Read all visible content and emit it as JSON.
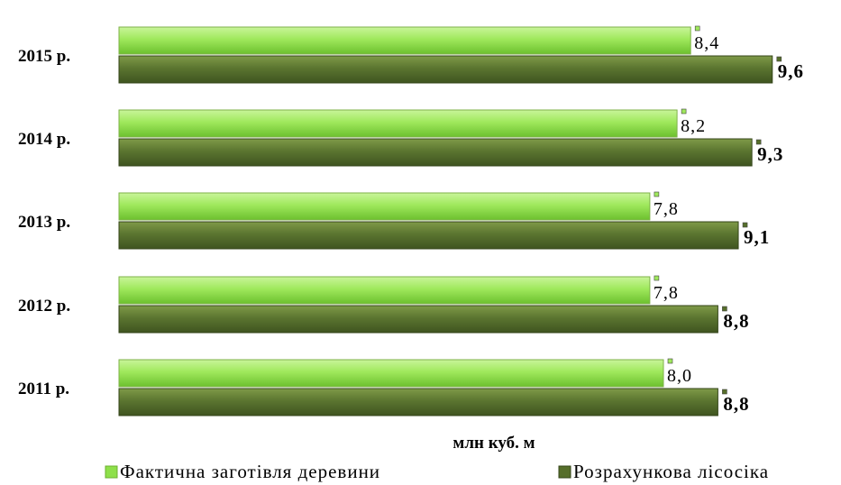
{
  "chart_data": {
    "type": "bar",
    "orientation": "horizontal",
    "categories": [
      "2015 р.",
      "2014 р.",
      "2013 р.",
      "2012 р.",
      "2011 р."
    ],
    "series": [
      {
        "name": "Фактична заготівля деревини",
        "values": [
          8.4,
          8.2,
          7.8,
          7.8,
          8.0
        ],
        "color": "#8ee04a",
        "labels": [
          "8,4",
          "8,2",
          "7,8",
          "7,8",
          "8,0"
        ]
      },
      {
        "name": "Розрахункова лісосіка",
        "values": [
          9.6,
          9.3,
          9.1,
          8.8,
          8.8
        ],
        "color": "#566e2a",
        "labels": [
          "9,6",
          "9,3",
          "9,1",
          "8,8",
          "8,8"
        ]
      }
    ],
    "xlabel": "млн куб. м",
    "legend_position": "bottom"
  }
}
